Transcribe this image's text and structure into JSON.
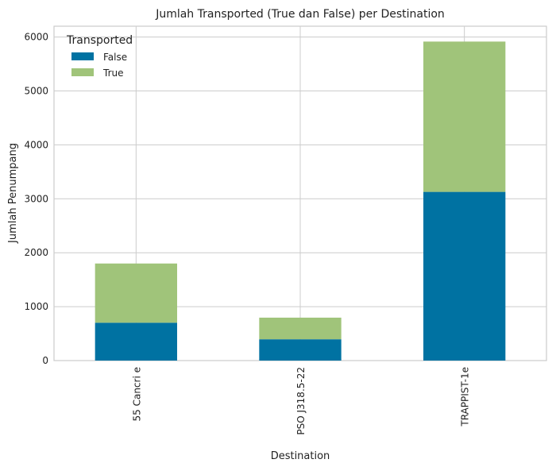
{
  "chart_data": {
    "type": "bar",
    "stacked": true,
    "title": "Jumlah Transported (True dan False) per Destination",
    "xlabel": "Destination",
    "ylabel": "Jumlah Penumpang",
    "categories": [
      "55 Cancri e",
      "PSO J318.5-22",
      "TRAPPIST-1e"
    ],
    "series": [
      {
        "name": "False",
        "values": [
          702,
          395,
          3128
        ],
        "color": "#0072A2"
      },
      {
        "name": "True",
        "values": [
          1098,
          401,
          2787
        ],
        "color": "#A0C47A"
      }
    ],
    "ylim": [
      0,
      6200
    ],
    "yticks": [
      0,
      1000,
      2000,
      3000,
      4000,
      5000,
      6000
    ],
    "grid": true,
    "legend": {
      "title": "Transported",
      "position": "top-left"
    }
  }
}
